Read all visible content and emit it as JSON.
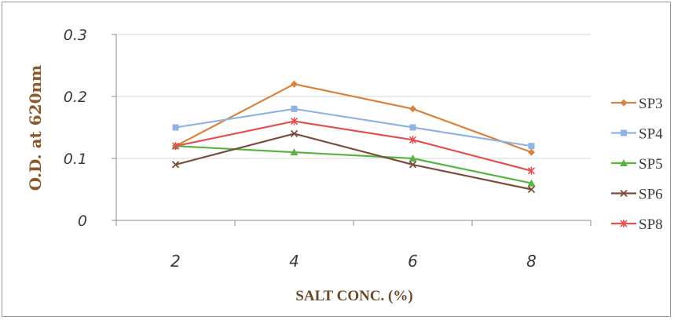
{
  "chart_data": {
    "type": "line",
    "title": "",
    "xlabel": "SALT CONC. (%)",
    "ylabel": "O.D. at 620nm",
    "categories": [
      "2",
      "4",
      "6",
      "8"
    ],
    "y_ticks": [
      "0",
      "0.1",
      "0.2",
      "0.3"
    ],
    "ylim": [
      0,
      0.3
    ],
    "grid": "horizontal",
    "legend_position": "right",
    "series": [
      {
        "name": "SP3",
        "values": [
          0.12,
          0.22,
          0.18,
          0.11
        ],
        "color": "#d9823b",
        "marker": "diamond"
      },
      {
        "name": "SP4",
        "values": [
          0.15,
          0.18,
          0.15,
          0.12
        ],
        "color": "#8fb4e3",
        "marker": "square"
      },
      {
        "name": "SP5",
        "values": [
          0.12,
          0.11,
          0.1,
          0.06
        ],
        "color": "#59b443",
        "marker": "triangle"
      },
      {
        "name": "SP6",
        "values": [
          0.09,
          0.14,
          0.09,
          0.05
        ],
        "color": "#7a4e3a",
        "marker": "x"
      },
      {
        "name": "SP8",
        "values": [
          0.12,
          0.16,
          0.13,
          0.08
        ],
        "color": "#e05252",
        "marker": "star"
      }
    ]
  }
}
